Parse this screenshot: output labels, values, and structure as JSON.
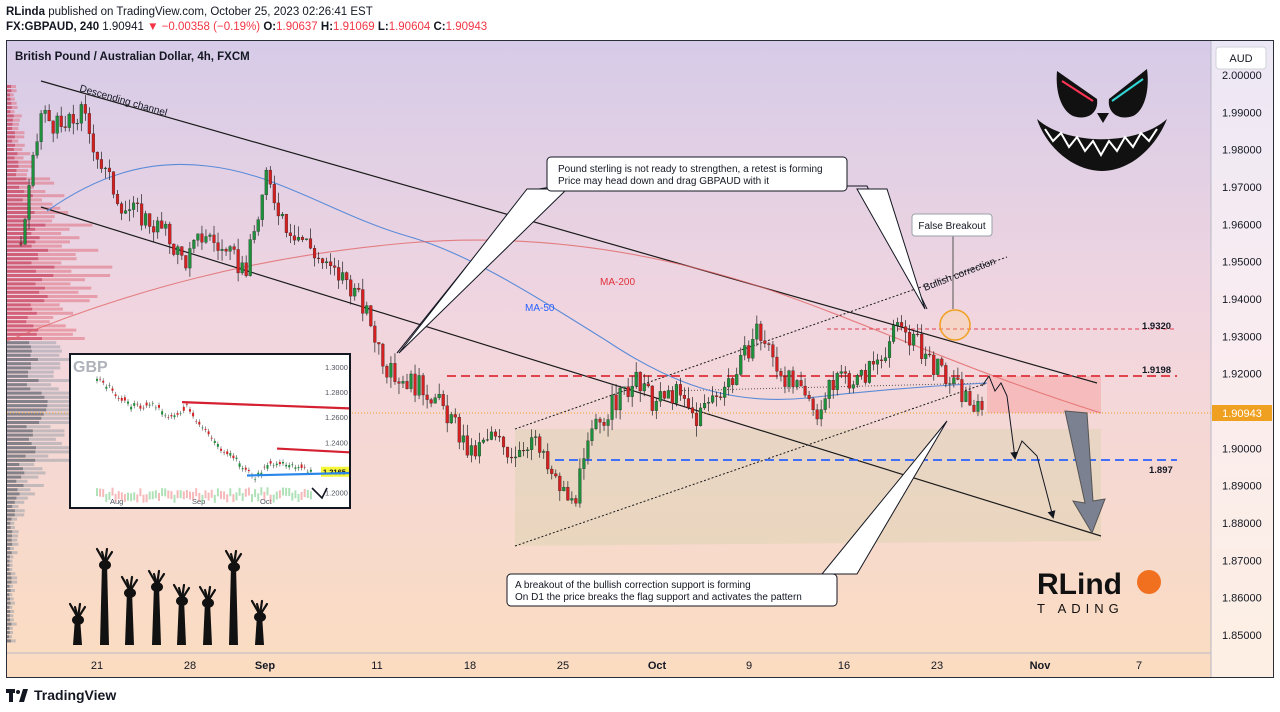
{
  "header": {
    "author": "RLinda",
    "published_text": "published on TradingView.com, October 25, 2023 02:26:41 EST",
    "symbol_line": "FX:GBPAUD, 240",
    "last": "1.90941",
    "change_arrow": "▼",
    "change": "−0.00358 (−0.19%)",
    "o_label": "O:",
    "o": "1.90637",
    "h_label": "H:",
    "h": "1.91069",
    "l_label": "L:",
    "l": "1.90604",
    "c_label": "C:",
    "c": "1.90943"
  },
  "footer": {
    "brand": "TradingView"
  },
  "colors": {
    "accent": "#f23645",
    "ma50": "#5b8bd8",
    "ma200": "#e06060",
    "support": "#2962ff",
    "resistance": "#e0303a",
    "price_tag": "#f0a020"
  },
  "chart_data": {
    "type": "candlestick",
    "title": "British Pound / Australian Dollar, 4h, FXCM",
    "currency": "AUD",
    "y_ticks": [
      "2.00000",
      "1.99000",
      "1.98000",
      "1.97000",
      "1.96000",
      "1.95000",
      "1.94000",
      "1.93000",
      "1.92000",
      "1.91000",
      "1.90000",
      "1.89000",
      "1.88000",
      "1.87000",
      "1.86000",
      "1.85000"
    ],
    "ylim": [
      1.845,
      2.003
    ],
    "x_ticks": [
      "21",
      "28",
      "Sep",
      "11",
      "18",
      "25",
      "Oct",
      "9",
      "16",
      "23",
      "Nov",
      "7"
    ],
    "last_price": "1.90943",
    "levels": [
      {
        "label": "1.9320",
        "value": 1.932
      },
      {
        "label": "1.9198",
        "value": 1.9198
      },
      {
        "label": "1.897",
        "value": 1.897
      }
    ],
    "series_close_path": [
      1.955,
      1.99,
      1.985,
      1.99,
      1.975,
      1.965,
      1.962,
      1.958,
      1.95,
      1.958,
      1.952,
      1.948,
      1.972,
      1.96,
      1.955,
      1.948,
      1.945,
      1.935,
      1.92,
      1.918,
      1.915,
      1.908,
      1.898,
      1.903,
      1.899,
      1.903,
      1.892,
      1.885,
      1.905,
      1.912,
      1.918,
      1.912,
      1.915,
      1.908,
      1.915,
      1.92,
      1.932,
      1.922,
      1.915,
      1.91,
      1.92,
      1.918,
      1.925,
      1.933,
      1.927,
      1.92,
      1.915,
      1.909
    ],
    "annotations": {
      "channel": "Descending channel",
      "bullish": "Bullish correction",
      "false_breakout": "False Breakout",
      "ma50": "MA-50",
      "ma200": "MA-200",
      "note_top_1": "Pound sterling is not ready to strengthen, a retest is forming",
      "note_top_2": "Price may head down and drag GBPAUD with it",
      "note_bottom_1": "A breakout of the bullish correction support is forming",
      "note_bottom_2": "On D1 the price breaks the flag support and activates the pattern"
    },
    "inset": {
      "label": "GBP",
      "y_ticks": [
        "1.3000",
        "1.2800",
        "1.2600",
        "1.2400",
        "1.2165",
        "1.2000"
      ],
      "x_ticks": [
        "Aug",
        "Sep",
        "Oct"
      ],
      "last": "1.2165"
    },
    "logo": {
      "top": "RLind",
      "bottom": "T ADING"
    }
  }
}
